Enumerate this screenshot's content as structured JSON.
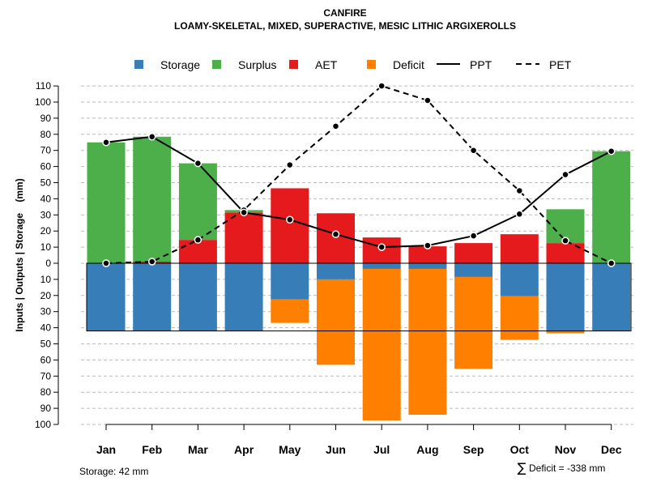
{
  "chart_data": {
    "type": "bar",
    "title": "CANFIRE",
    "subtitle": "LOAMY-SKELETAL, MIXED, SUPERACTIVE, MESIC LITHIC ARGIXEROLLS",
    "ylabel": "Inputs | Outputs | Storage    (mm)",
    "ylim": [
      -100,
      110
    ],
    "yticks": [
      110,
      100,
      90,
      80,
      70,
      60,
      50,
      40,
      30,
      20,
      10,
      0,
      -10,
      -20,
      -30,
      -40,
      -50,
      -60,
      -70,
      -80,
      -90,
      -100
    ],
    "ytick_labels": [
      "110",
      "100",
      "90",
      "80",
      "70",
      "60",
      "50",
      "40",
      "30",
      "20",
      "10",
      "0",
      "10",
      "20",
      "30",
      "40",
      "50",
      "60",
      "70",
      "80",
      "90",
      "100"
    ],
    "categories": [
      "Jan",
      "Feb",
      "Mar",
      "Apr",
      "May",
      "Jun",
      "Jul",
      "Aug",
      "Sep",
      "Oct",
      "Nov",
      "Dec"
    ],
    "series": [
      {
        "name": "AET",
        "color": "#E41A1C",
        "values": [
          0,
          1,
          14.5,
          31.5,
          46.5,
          31,
          16,
          10.5,
          12.5,
          18,
          12.5,
          0
        ]
      },
      {
        "name": "Surplus",
        "color": "#4DAF4A",
        "values": [
          75,
          77.5,
          47.5,
          1.5,
          0,
          0,
          0,
          0,
          0,
          0,
          21,
          69.5
        ]
      },
      {
        "name": "Storage",
        "color": "#377EB8",
        "values": [
          42,
          42,
          42,
          42,
          22.5,
          10,
          3.5,
          3.5,
          8.5,
          20.5,
          42,
          42
        ]
      },
      {
        "name": "Deficit",
        "color": "#FF7F00",
        "values": [
          0,
          0,
          0,
          0,
          14.5,
          53,
          94,
          90.5,
          57,
          27,
          1.5,
          0
        ]
      },
      {
        "name": "PPT",
        "color": "#000000",
        "style": "solid",
        "values": [
          75,
          78.5,
          62,
          31.5,
          27,
          18,
          10,
          11,
          17,
          30.5,
          55,
          69.5
        ]
      },
      {
        "name": "PET",
        "color": "#000000",
        "style": "dashed",
        "values": [
          0,
          1,
          14.5,
          33,
          61,
          85,
          110,
          101,
          70,
          45,
          14,
          0
        ]
      }
    ],
    "legend": [
      "Storage",
      "Surplus",
      "AET",
      "Deficit",
      "PPT",
      "PET"
    ],
    "legend_position": "top",
    "storage_capacity": 42,
    "notes": {
      "storage": "Storage: 42 mm",
      "deficit_symbol": "∑",
      "deficit": "Deficit = -338 mm"
    }
  }
}
